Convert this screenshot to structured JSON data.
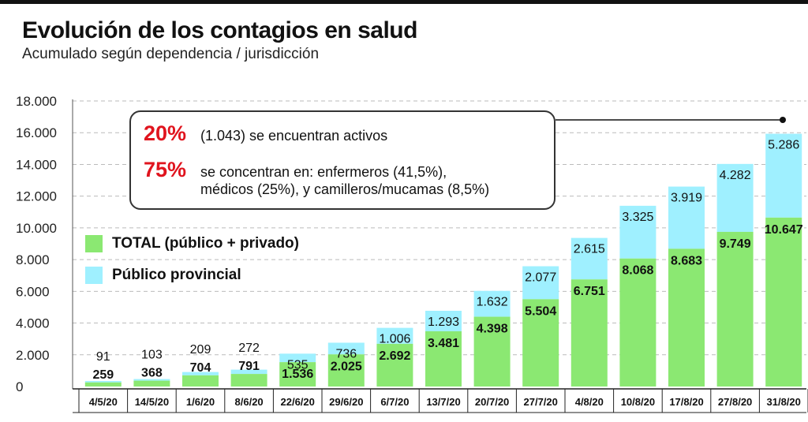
{
  "title": "Evolución de los contagios en salud",
  "subtitle": "Acumulado según dependencia / jurisdicción",
  "callout": {
    "stat1_pct": "20%",
    "stat1_text": "(1.043) se encuentran activos",
    "stat2_pct": "75%",
    "stat2_text_line1": "se concentran en: enfermeros (41,5%),",
    "stat2_text_line2": "médicos (25%), y camilleros/mucamas (8,5%)"
  },
  "colors": {
    "total": "#8be872",
    "provincial": "#9ff0ff",
    "accent": "#e0141e",
    "grid": "#bbbbbb"
  },
  "chart_data": {
    "type": "bar",
    "stacked": true,
    "categories": [
      "4/5/20",
      "14/5/20",
      "1/6/20",
      "8/6/20",
      "22/6/20",
      "29/6/20",
      "6/7/20",
      "13/7/20",
      "20/7/20",
      "27/7/20",
      "4/8/20",
      "10/8/20",
      "17/8/20",
      "27/8/20",
      "31/8/20"
    ],
    "series": [
      {
        "name": "TOTAL (público + privado)",
        "values": [
          259,
          368,
          704,
          791,
          1536,
          2025,
          2692,
          3481,
          4398,
          5504,
          6751,
          8068,
          8683,
          9749,
          10647
        ],
        "labels": [
          "259",
          "368",
          "704",
          "791",
          "1.536",
          "2.025",
          "2.692",
          "3.481",
          "4.398",
          "5.504",
          "6.751",
          "8.068",
          "8.683",
          "9.749",
          "10.647"
        ]
      },
      {
        "name": "Público provincial",
        "values": [
          91,
          103,
          209,
          272,
          535,
          736,
          1006,
          1293,
          1632,
          2077,
          2615,
          3325,
          3919,
          4282,
          5286
        ],
        "labels": [
          "91",
          "103",
          "209",
          "272",
          "535",
          "736",
          "1.006",
          "1.293",
          "1.632",
          "2.077",
          "2.615",
          "3.325",
          "3.919",
          "4.282",
          "5.286"
        ]
      }
    ],
    "yticks": [
      "0",
      "2.000",
      "4.000",
      "6.000",
      "8.000",
      "10.000",
      "12.000",
      "14.000",
      "16.000",
      "18.000"
    ],
    "ylim": [
      0,
      18000
    ],
    "grid": true,
    "legend": "left"
  }
}
